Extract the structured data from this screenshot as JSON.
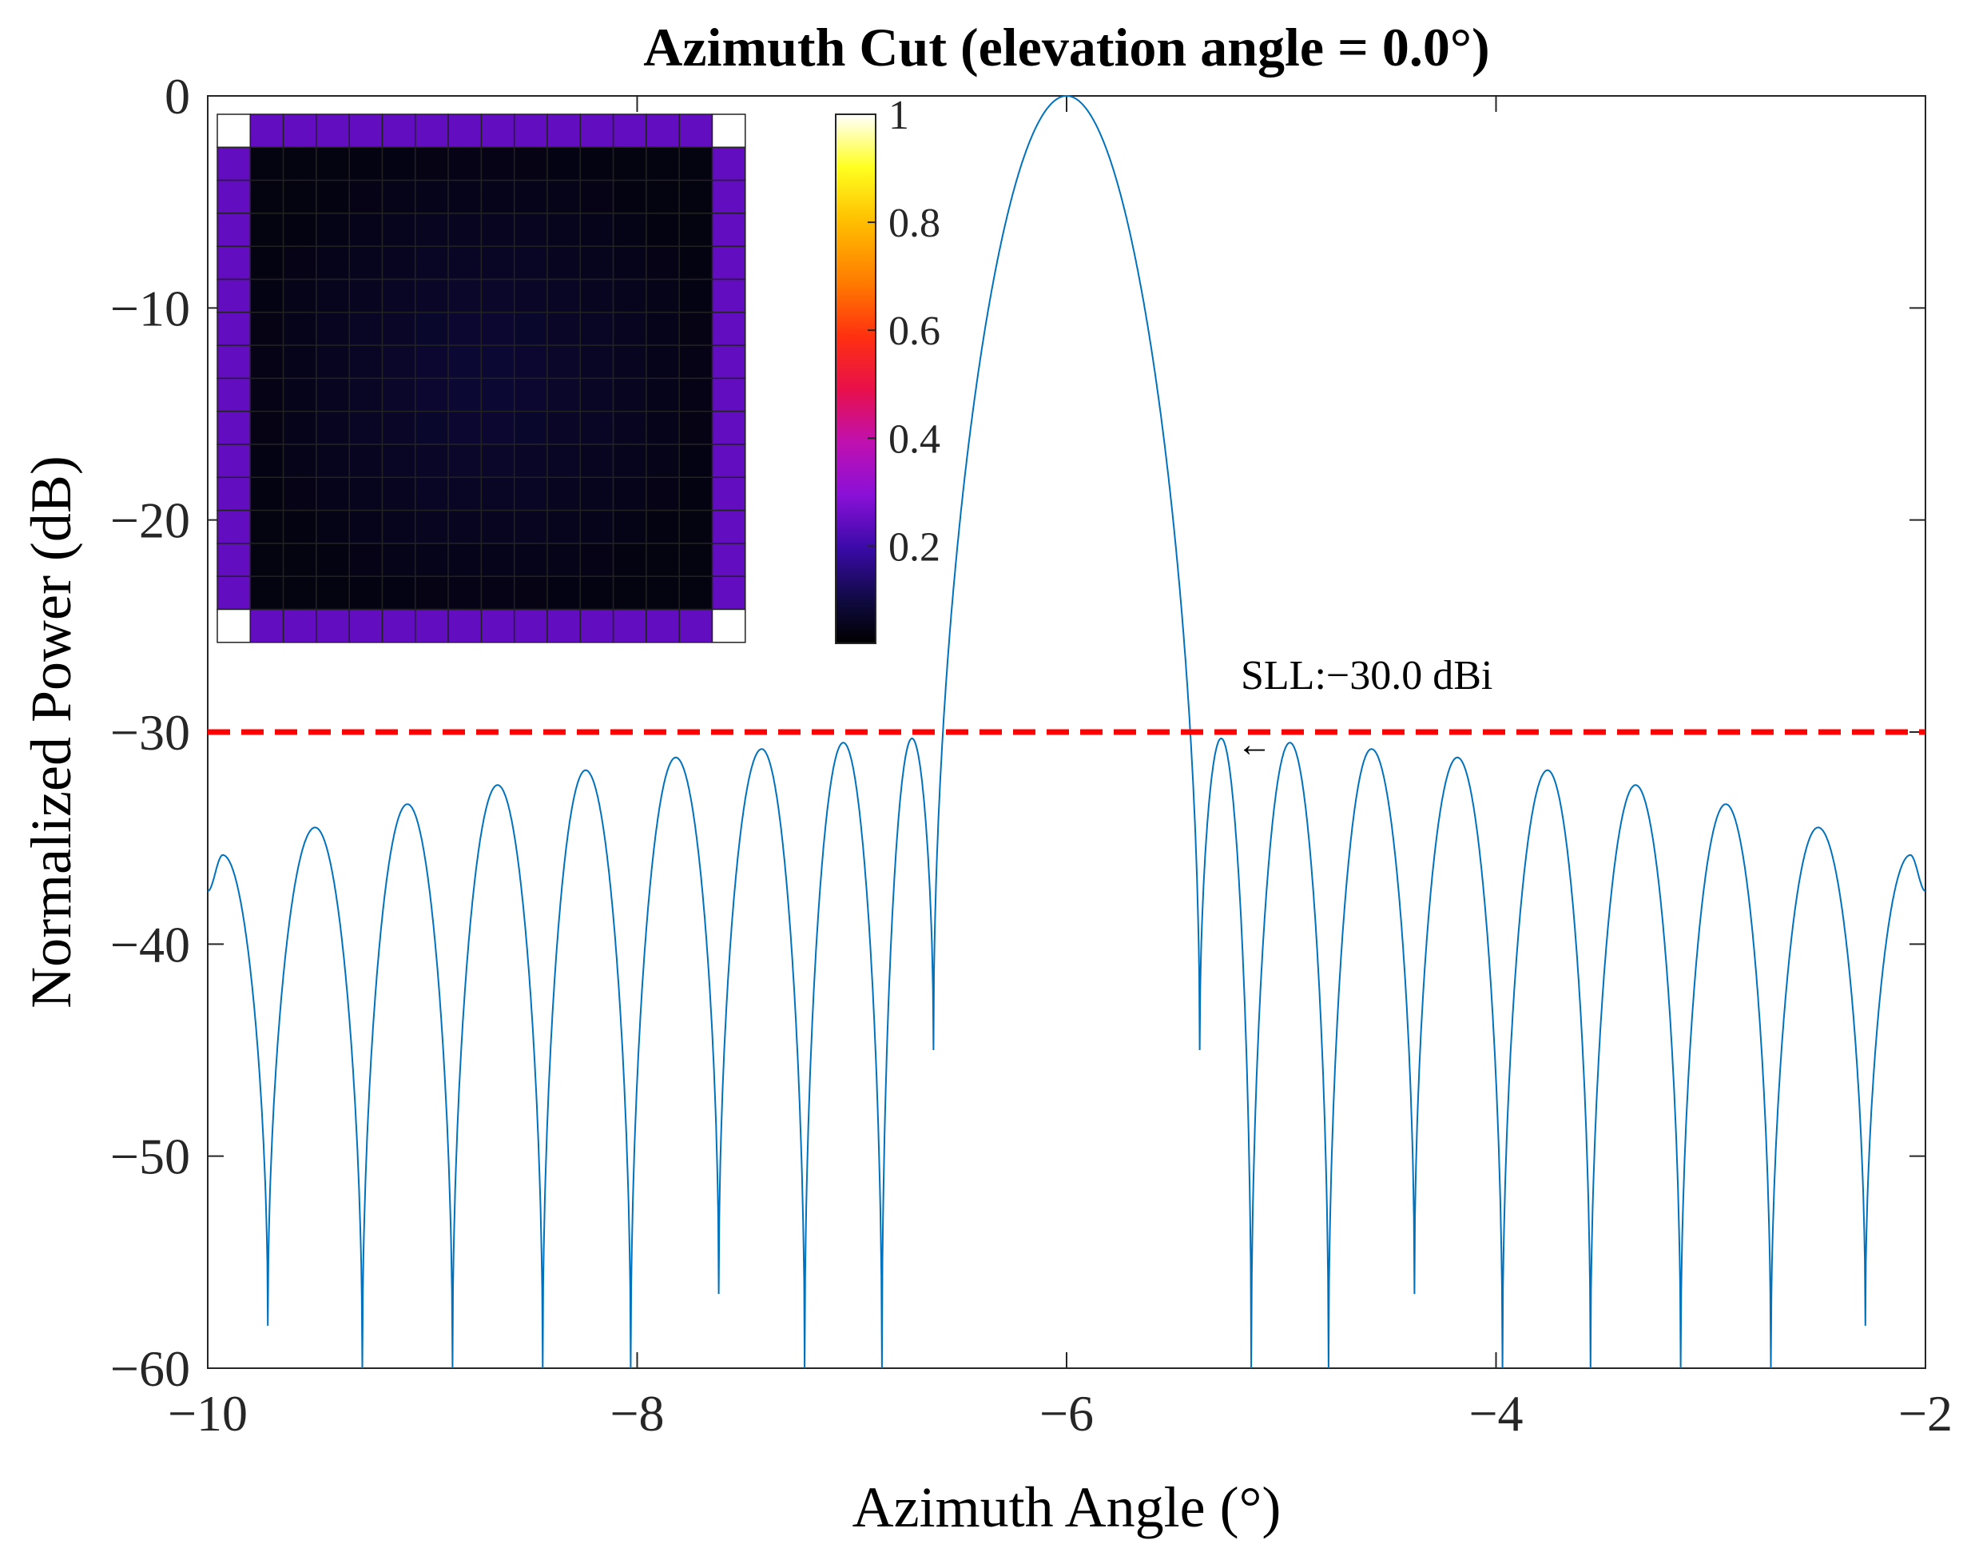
{
  "chart_data": {
    "type": "line",
    "title": "Azimuth Cut (elevation angle = 0.0°)",
    "xlabel": "Azimuth Angle (°)",
    "ylabel": "Normalized Power (dB)",
    "xlim": [
      -10,
      -2
    ],
    "ylim": [
      -60,
      0
    ],
    "xticks": [
      -10,
      -8,
      -6,
      -4,
      -2
    ],
    "xtick_labels": [
      "−10",
      "−8",
      "−6",
      "−4",
      "−2"
    ],
    "yticks": [
      0,
      -10,
      -20,
      -30,
      -40,
      -50,
      -60
    ],
    "ytick_labels": [
      "0",
      "−10",
      "−20",
      "−30",
      "−40",
      "−50",
      "−60"
    ],
    "grid": false,
    "series": [
      {
        "name": "Azimuth cut",
        "color": "#0072BD",
        "main_lobe_peak": {
          "x": -6.0,
          "y": 0
        },
        "first_nulls": [
          -6.62,
          -5.38
        ],
        "nulls": [
          -9.72,
          -9.28,
          -8.86,
          -8.44,
          -8.03,
          -7.62,
          -7.22,
          -6.86,
          -6.62,
          -5.38,
          -5.14,
          -4.78,
          -4.38,
          -3.97,
          -3.56,
          -3.14,
          -2.72,
          -2.28
        ],
        "null_depths": [
          -58,
          -60,
          -60,
          -60,
          -60,
          -56.5,
          -60,
          -60,
          -45,
          -45,
          -60,
          -60,
          -56.5,
          -60,
          -60,
          -60,
          -60,
          -58
        ],
        "sidelobe_peaks": [
          {
            "x": -9.93,
            "y": -35.8
          },
          {
            "x": -9.5,
            "y": -34.5
          },
          {
            "x": -9.07,
            "y": -33.4
          },
          {
            "x": -8.65,
            "y": -32.5
          },
          {
            "x": -8.24,
            "y": -31.8
          },
          {
            "x": -7.82,
            "y": -31.2
          },
          {
            "x": -7.42,
            "y": -30.8
          },
          {
            "x": -7.04,
            "y": -30.5
          },
          {
            "x": -6.72,
            "y": -30.3
          },
          {
            "x": -5.28,
            "y": -30.3
          },
          {
            "x": -4.96,
            "y": -30.5
          },
          {
            "x": -4.58,
            "y": -30.8
          },
          {
            "x": -4.18,
            "y": -31.2
          },
          {
            "x": -3.76,
            "y": -31.8
          },
          {
            "x": -3.35,
            "y": -32.5
          },
          {
            "x": -2.93,
            "y": -33.4
          },
          {
            "x": -2.5,
            "y": -34.5
          },
          {
            "x": -2.07,
            "y": -35.8
          }
        ],
        "edge_values": {
          "left": -37.5,
          "right": -37.5
        }
      }
    ],
    "reference_line": {
      "y": -30,
      "color": "#FF0000",
      "style": "dashed"
    },
    "annotation": {
      "text": "SLL:−30.0 dBi",
      "arrow": "←",
      "x": -5.12,
      "y": -30.5
    },
    "inset_heatmap": {
      "rows": 16,
      "cols": 16,
      "colormap": "hot",
      "description_values": {
        "corner": 1.0,
        "edge": 0.23,
        "interior_min": 0.02,
        "interior_center": 0.07
      },
      "colorbar_ticks": [
        1,
        0.8,
        0.6,
        0.4,
        0.2
      ],
      "colorbar_tick_labels": [
        "1",
        "0.8",
        "0.6",
        "0.4",
        "0.2"
      ],
      "colorbar_range": [
        0.02,
        1
      ]
    }
  }
}
